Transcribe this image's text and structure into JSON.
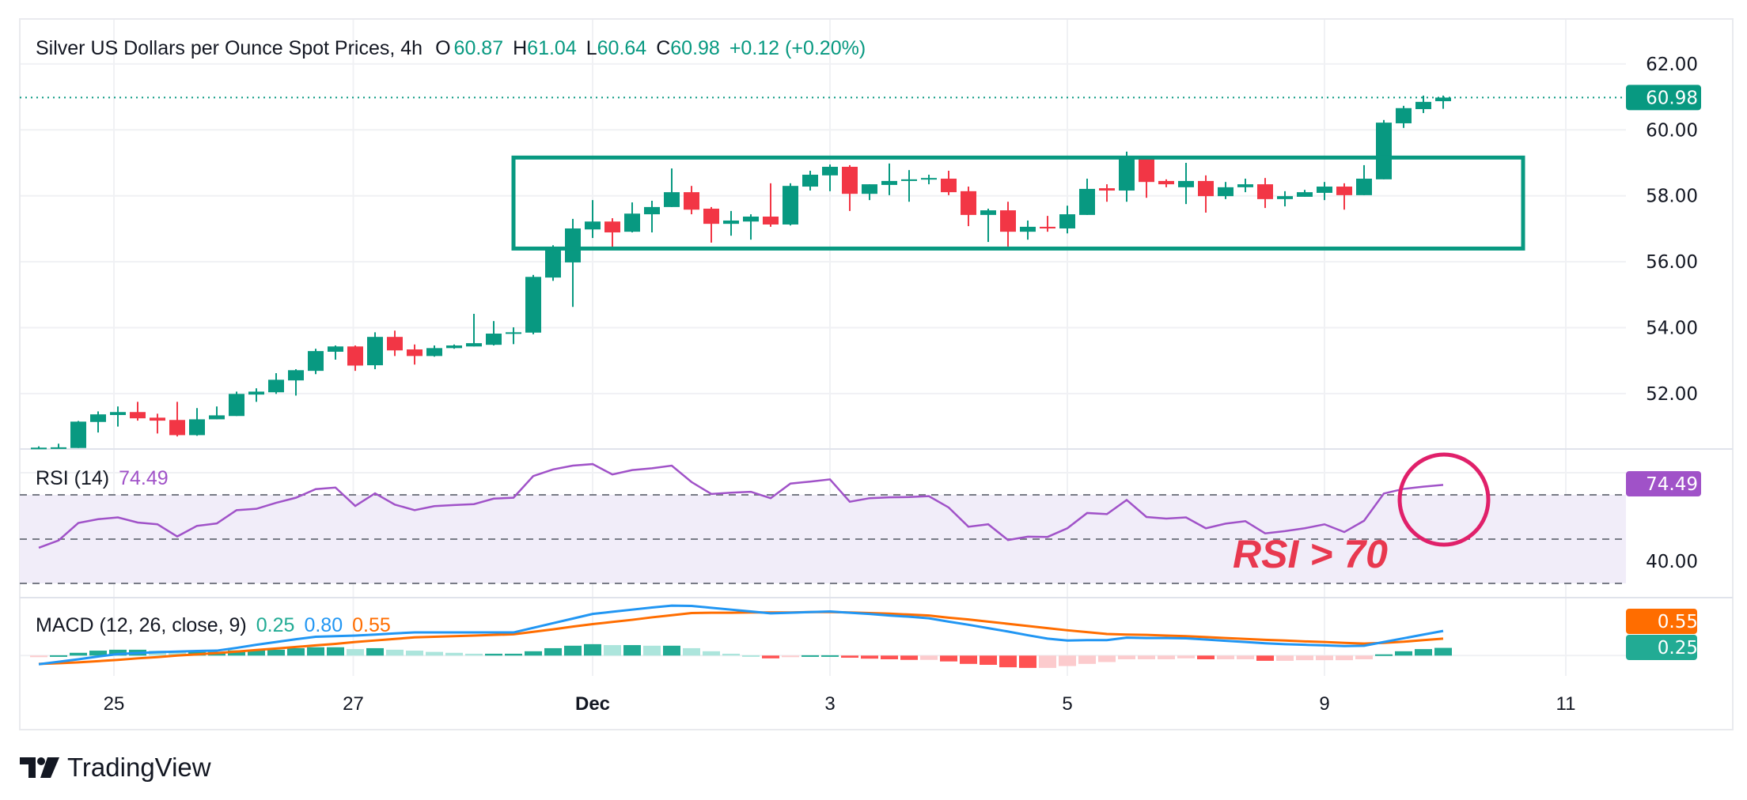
{
  "header": {
    "symbol_title": "Silver US Dollars per Ounce Spot Prices, 4h",
    "open_label": "O",
    "open": "60.87",
    "high_label": "H",
    "high": "61.04",
    "low_label": "L",
    "low": "60.64",
    "close_label": "C",
    "close": "60.98",
    "change": "+0.12 (+0.20%)"
  },
  "rsi_legend": {
    "name": "RSI (14)",
    "value": "74.49"
  },
  "macd_legend": {
    "name": "MACD (12, 26, close, 9)",
    "histogram": "0.25",
    "macd": "0.80",
    "signal": "0.55"
  },
  "annotation": {
    "text": "RSI > 70"
  },
  "branding": {
    "name": "TradingView"
  },
  "badges": {
    "last_price": "60.98",
    "rsi": "74.49",
    "signal": "0.55",
    "histogram": "0.25"
  },
  "colors": {
    "up": "#089981",
    "down": "#f23645",
    "rsi": "#a052c8",
    "macd": "#2196f3",
    "signal": "#ff6d00",
    "hist_up_strong": "#22ab94",
    "hist_up_weak": "#ace5dc",
    "hist_down_strong": "#ff5252",
    "hist_down_weak": "#fccbcd",
    "annotation": "#e8384f",
    "circle": "#e0206a",
    "box": "#089981"
  },
  "chart_data": [
    {
      "type": "candlestick",
      "title": "Silver US Dollars per Ounce Spot Prices, 4h",
      "x_ticks": [
        "25",
        "27",
        "Dec",
        "3",
        "5",
        "9",
        "11"
      ],
      "y_ticks": [
        "52.00",
        "54.00",
        "56.00",
        "58.00",
        "60.00",
        "62.00"
      ],
      "ylim": [
        50.3,
        63.0
      ],
      "grid": true,
      "last_price": 60.98,
      "ohlc": [
        [
          50.36,
          50.4,
          50.35,
          50.36
        ],
        [
          50.35,
          50.48,
          50.35,
          50.37
        ],
        [
          50.35,
          51.17,
          50.35,
          51.15
        ],
        [
          51.14,
          51.46,
          50.82,
          51.37
        ],
        [
          51.35,
          51.61,
          51.0,
          51.44
        ],
        [
          51.44,
          51.75,
          51.18,
          51.25
        ],
        [
          51.27,
          51.39,
          50.79,
          51.18
        ],
        [
          51.2,
          51.75,
          50.7,
          50.74
        ],
        [
          50.74,
          51.56,
          50.72,
          51.22
        ],
        [
          51.22,
          51.61,
          51.22,
          51.34
        ],
        [
          51.32,
          52.06,
          51.32,
          51.99
        ],
        [
          51.97,
          52.16,
          51.75,
          52.06
        ],
        [
          52.04,
          52.62,
          51.99,
          52.42
        ],
        [
          52.4,
          52.74,
          51.94,
          52.71
        ],
        [
          52.69,
          53.36,
          52.59,
          53.29
        ],
        [
          53.27,
          53.46,
          53.03,
          53.43
        ],
        [
          53.43,
          53.46,
          52.69,
          52.85
        ],
        [
          52.86,
          53.86,
          52.74,
          53.72
        ],
        [
          53.72,
          53.91,
          53.14,
          53.31
        ],
        [
          53.34,
          53.49,
          52.88,
          53.14
        ],
        [
          53.14,
          53.46,
          53.12,
          53.38
        ],
        [
          53.38,
          53.49,
          53.36,
          53.46
        ],
        [
          53.43,
          54.42,
          53.43,
          53.53
        ],
        [
          53.48,
          54.2,
          53.46,
          53.82
        ],
        [
          53.82,
          54.01,
          53.5,
          53.86
        ],
        [
          53.85,
          55.6,
          53.8,
          55.54
        ],
        [
          55.52,
          56.5,
          55.42,
          56.45
        ],
        [
          55.98,
          57.3,
          54.63,
          57.01
        ],
        [
          56.98,
          57.87,
          56.72,
          57.22
        ],
        [
          57.22,
          57.32,
          56.43,
          56.89
        ],
        [
          56.91,
          57.8,
          56.89,
          57.46
        ],
        [
          57.44,
          57.85,
          56.89,
          57.66
        ],
        [
          57.66,
          58.83,
          57.66,
          58.11
        ],
        [
          58.11,
          58.3,
          57.44,
          57.58
        ],
        [
          57.61,
          57.66,
          56.58,
          57.15
        ],
        [
          57.15,
          57.54,
          56.79,
          57.25
        ],
        [
          57.22,
          57.44,
          56.67,
          57.37
        ],
        [
          57.37,
          58.38,
          57.06,
          57.13
        ],
        [
          57.13,
          58.38,
          57.1,
          58.3
        ],
        [
          58.28,
          58.76,
          58.16,
          58.64
        ],
        [
          58.62,
          58.95,
          58.14,
          58.88
        ],
        [
          58.88,
          58.93,
          57.54,
          58.06
        ],
        [
          58.06,
          58.35,
          57.87,
          58.35
        ],
        [
          58.33,
          58.98,
          58.02,
          58.45
        ],
        [
          58.45,
          58.78,
          57.82,
          58.5
        ],
        [
          58.5,
          58.64,
          58.35,
          58.54
        ],
        [
          58.52,
          58.76,
          58.02,
          58.11
        ],
        [
          58.14,
          58.28,
          57.08,
          57.42
        ],
        [
          57.42,
          57.61,
          56.6,
          57.56
        ],
        [
          57.56,
          57.82,
          56.46,
          56.91
        ],
        [
          56.91,
          57.25,
          56.67,
          57.06
        ],
        [
          57.06,
          57.39,
          56.91,
          57.01
        ],
        [
          57.01,
          57.7,
          56.86,
          57.44
        ],
        [
          57.42,
          58.52,
          57.42,
          58.21
        ],
        [
          58.23,
          58.35,
          57.82,
          58.16
        ],
        [
          58.16,
          59.34,
          57.82,
          59.12
        ],
        [
          59.12,
          59.19,
          57.94,
          58.42
        ],
        [
          58.45,
          58.5,
          58.26,
          58.35
        ],
        [
          58.26,
          59.0,
          57.75,
          58.45
        ],
        [
          58.45,
          58.62,
          57.49,
          57.99
        ],
        [
          57.99,
          58.42,
          57.9,
          58.26
        ],
        [
          58.26,
          58.52,
          58.11,
          58.35
        ],
        [
          58.35,
          58.54,
          57.63,
          57.9
        ],
        [
          57.9,
          58.14,
          57.68,
          57.99
        ],
        [
          57.97,
          58.18,
          57.97,
          58.11
        ],
        [
          58.09,
          58.42,
          57.87,
          58.28
        ],
        [
          58.28,
          58.38,
          57.58,
          58.02
        ],
        [
          58.02,
          58.93,
          58.02,
          58.52
        ],
        [
          58.5,
          60.3,
          58.5,
          60.22
        ],
        [
          60.2,
          60.73,
          60.06,
          60.66
        ],
        [
          60.63,
          61.04,
          60.51,
          60.85
        ],
        [
          60.87,
          61.04,
          60.64,
          60.98
        ]
      ],
      "range_box": {
        "top": 59.16,
        "bottom": 56.4
      }
    },
    {
      "type": "line",
      "name": "RSI (14)",
      "y_ticks": [
        "40.00"
      ],
      "levels": [
        30,
        50,
        70
      ],
      "ylim": [
        20,
        88
      ],
      "values": [
        46.1,
        49.4,
        57.3,
        59.0,
        59.8,
        57.5,
        56.7,
        51.2,
        56.0,
        57.1,
        63.1,
        63.7,
        66.4,
        68.7,
        72.6,
        73.3,
        65.0,
        70.7,
        65.6,
        63.1,
        64.9,
        65.4,
        65.8,
        68.3,
        68.7,
        78.5,
        81.5,
        83.2,
        83.9,
        79.2,
        81.2,
        82.0,
        83.2,
        75.8,
        70.4,
        71.0,
        71.4,
        68.5,
        75.1,
        76.0,
        77.0,
        66.9,
        68.5,
        68.9,
        69.0,
        69.4,
        64.3,
        55.6,
        56.7,
        49.6,
        51.1,
        51.0,
        54.9,
        61.8,
        61.3,
        67.7,
        60.0,
        59.3,
        59.8,
        54.9,
        57.0,
        58.1,
        52.6,
        53.6,
        54.9,
        56.7,
        53.2,
        58.3,
        70.6,
        72.7,
        73.7,
        74.49
      ]
    },
    {
      "type": "line+bar",
      "name": "MACD (12, 26, close, 9)",
      "macd": [
        -0.28,
        -0.2,
        -0.12,
        -0.03,
        0.05,
        0.08,
        0.11,
        0.13,
        0.15,
        0.16,
        0.25,
        0.35,
        0.44,
        0.53,
        0.61,
        0.63,
        0.65,
        0.68,
        0.72,
        0.75,
        0.75,
        0.75,
        0.75,
        0.75,
        0.75,
        0.9,
        1.05,
        1.2,
        1.35,
        1.42,
        1.49,
        1.56,
        1.62,
        1.61,
        1.55,
        1.49,
        1.43,
        1.37,
        1.39,
        1.41,
        1.43,
        1.39,
        1.35,
        1.3,
        1.26,
        1.21,
        1.1,
        1.0,
        0.89,
        0.78,
        0.66,
        0.55,
        0.49,
        0.5,
        0.5,
        0.58,
        0.57,
        0.57,
        0.56,
        0.52,
        0.48,
        0.44,
        0.4,
        0.37,
        0.35,
        0.33,
        0.31,
        0.32,
        0.44,
        0.56,
        0.68,
        0.8
      ],
      "signal": [
        -0.27,
        -0.25,
        -0.22,
        -0.18,
        -0.14,
        -0.09,
        -0.05,
        0.0,
        0.04,
        0.08,
        0.13,
        0.18,
        0.23,
        0.28,
        0.33,
        0.38,
        0.44,
        0.49,
        0.54,
        0.59,
        0.61,
        0.63,
        0.65,
        0.67,
        0.69,
        0.77,
        0.85,
        0.94,
        1.02,
        1.09,
        1.16,
        1.24,
        1.31,
        1.38,
        1.39,
        1.39,
        1.4,
        1.4,
        1.4,
        1.41,
        1.41,
        1.4,
        1.38,
        1.36,
        1.33,
        1.3,
        1.23,
        1.17,
        1.1,
        1.03,
        0.96,
        0.89,
        0.82,
        0.76,
        0.7,
        0.68,
        0.67,
        0.65,
        0.63,
        0.6,
        0.57,
        0.54,
        0.51,
        0.49,
        0.46,
        0.44,
        0.41,
        0.39,
        0.41,
        0.45,
        0.5,
        0.55
      ],
      "histogram": [
        -0.02,
        0.01,
        0.09,
        0.16,
        0.19,
        0.19,
        0.16,
        0.12,
        0.12,
        0.12,
        0.17,
        0.17,
        0.19,
        0.24,
        0.27,
        0.27,
        0.21,
        0.24,
        0.19,
        0.16,
        0.12,
        0.09,
        0.06,
        0.06,
        0.06,
        0.14,
        0.24,
        0.32,
        0.37,
        0.34,
        0.34,
        0.32,
        0.32,
        0.24,
        0.14,
        0.06,
        0.01,
        -0.09,
        -0.03,
        0.01,
        0.01,
        -0.07,
        -0.1,
        -0.12,
        -0.14,
        -0.14,
        -0.19,
        -0.27,
        -0.3,
        -0.38,
        -0.4,
        -0.4,
        -0.34,
        -0.27,
        -0.21,
        -0.12,
        -0.12,
        -0.12,
        -0.09,
        -0.12,
        -0.12,
        -0.12,
        -0.17,
        -0.17,
        -0.15,
        -0.15,
        -0.15,
        -0.12,
        0.04,
        0.14,
        0.21,
        0.25
      ]
    }
  ]
}
